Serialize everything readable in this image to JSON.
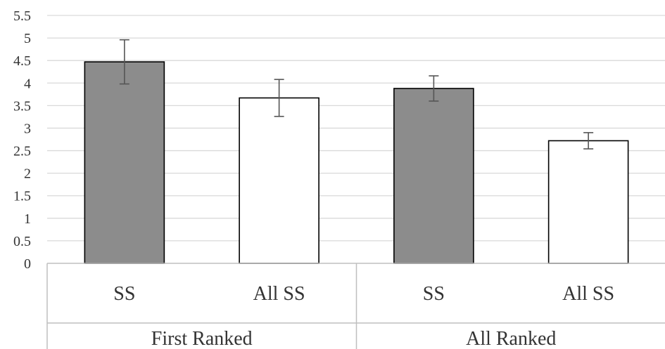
{
  "chart_data": {
    "type": "bar",
    "title": "",
    "xlabel": "",
    "ylabel": "",
    "ylim": [
      0,
      5.5
    ],
    "yticks": [
      "0",
      "0.5",
      "1",
      "1.5",
      "2",
      "2.5",
      "3",
      "3.5",
      "4",
      "4.5",
      "5",
      "5.5"
    ],
    "grid": true,
    "groups": [
      "First Ranked",
      "All Ranked"
    ],
    "categories": [
      "SS",
      "All SS",
      "SS",
      "All SS"
    ],
    "values": [
      4.47,
      3.67,
      3.88,
      2.72
    ],
    "error_bars": [
      [
        3.98,
        4.96
      ],
      [
        3.26,
        4.08
      ],
      [
        3.6,
        4.16
      ],
      [
        2.54,
        2.9
      ]
    ],
    "bar_colors": [
      "#8c8c8c",
      "#ffffff",
      "#8c8c8c",
      "#ffffff"
    ],
    "bar_outline": "#000000",
    "errorbar_color": "#555555",
    "grid_color": "#d9d9d9",
    "axis_color": "#bfbfbf"
  }
}
